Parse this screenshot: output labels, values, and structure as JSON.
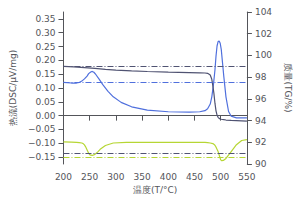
{
  "chart_data": {
    "type": "line",
    "xlabel": "温度(T/°C)",
    "ylabel": "热流(DSC/μV/mg)",
    "y2label": "质量(TG/%)",
    "xlim": [
      200,
      550
    ],
    "ylim": [
      -0.175,
      0.375
    ],
    "y2lim": [
      90,
      104
    ],
    "xticks": [
      200,
      250,
      300,
      350,
      400,
      450,
      500,
      550
    ],
    "yticks": [
      {
        "value": -0.15,
        "label": "−0.15"
      },
      {
        "value": -0.1,
        "label": "−0.10"
      },
      {
        "value": -0.05,
        "label": "−0.05"
      },
      {
        "value": 0.0,
        "label": "0.00"
      },
      {
        "value": 0.05,
        "label": "0.05"
      },
      {
        "value": 0.1,
        "label": "0.10"
      },
      {
        "value": 0.15,
        "label": "0.15"
      },
      {
        "value": 0.2,
        "label": "0.20"
      },
      {
        "value": 0.25,
        "label": "0.25"
      },
      {
        "value": 0.3,
        "label": "0.30"
      },
      {
        "value": 0.35,
        "label": "0.35"
      }
    ],
    "y2ticks": [
      90,
      92,
      94,
      96,
      98,
      100,
      102,
      104
    ],
    "grid": false,
    "series": [
      {
        "x": [
          200,
          215,
          225,
          230,
          235,
          240,
          245,
          248,
          252,
          255,
          258,
          262,
          268,
          275,
          285,
          295,
          310,
          330,
          360,
          400,
          440,
          460,
          470,
          475,
          480,
          483,
          486,
          489,
          491,
          493,
          495,
          497,
          499,
          501,
          503,
          506,
          510,
          515,
          520,
          530,
          540,
          550
        ],
        "values": [
          0.12,
          0.118,
          0.118,
          0.12,
          0.125,
          0.133,
          0.143,
          0.152,
          0.158,
          0.16,
          0.157,
          0.148,
          0.132,
          0.112,
          0.088,
          0.068,
          0.048,
          0.032,
          0.02,
          0.014,
          0.013,
          0.014,
          0.018,
          0.025,
          0.042,
          0.068,
          0.11,
          0.165,
          0.215,
          0.252,
          0.268,
          0.27,
          0.262,
          0.24,
          0.2,
          0.14,
          0.068,
          0.015,
          -0.002,
          -0.008,
          -0.008,
          -0.008
        ],
        "hlines": [
          {
            "value": 0.122,
            "line_style": "dashdot"
          }
        ]
      },
      {
        "x": [
          200,
          215,
          225,
          230,
          235,
          238,
          240,
          242,
          244,
          246,
          248,
          250,
          252,
          255,
          260,
          265,
          270,
          280,
          295,
          320,
          360,
          400,
          440,
          460,
          470,
          475,
          480,
          485,
          488,
          490,
          492,
          495,
          498,
          500,
          502,
          505,
          510,
          520,
          530,
          540,
          550
        ],
        "values": [
          -0.095,
          -0.096,
          -0.097,
          -0.098,
          -0.099,
          -0.102,
          -0.106,
          -0.112,
          -0.12,
          -0.128,
          -0.136,
          -0.141,
          -0.143,
          -0.144,
          -0.14,
          -0.132,
          -0.122,
          -0.108,
          -0.099,
          -0.097,
          -0.097,
          -0.097,
          -0.097,
          -0.097,
          -0.097,
          -0.098,
          -0.099,
          -0.101,
          -0.105,
          -0.11,
          -0.118,
          -0.13,
          -0.148,
          -0.16,
          -0.163,
          -0.162,
          -0.155,
          -0.13,
          -0.105,
          -0.09,
          -0.087
        ],
        "hlines": [
          {
            "value": -0.155,
            "line_style": "dashdot"
          }
        ]
      },
      {
        "axis": "y2",
        "x": [
          200,
          220,
          240,
          260,
          280,
          300,
          330,
          360,
          400,
          440,
          460,
          470,
          475,
          480,
          483,
          485,
          487,
          489,
          491,
          493,
          495,
          497,
          499,
          501,
          503,
          506,
          510,
          520,
          530,
          540,
          550
        ],
        "values": [
          99.0,
          98.95,
          98.88,
          98.8,
          98.72,
          98.65,
          98.58,
          98.52,
          98.46,
          98.42,
          98.4,
          98.38,
          98.35,
          98.2,
          97.8,
          97.2,
          96.5,
          95.6,
          94.9,
          94.5,
          94.3,
          94.2,
          94.15,
          94.12,
          94.1,
          94.08,
          94.05,
          94.02,
          94.0,
          93.98,
          93.95
        ],
        "hlines": [
          {
            "value": 99.0,
            "line_style": "dashdot"
          },
          {
            "value": 91.0,
            "line_style": "dashdot"
          }
        ]
      }
    ]
  }
}
